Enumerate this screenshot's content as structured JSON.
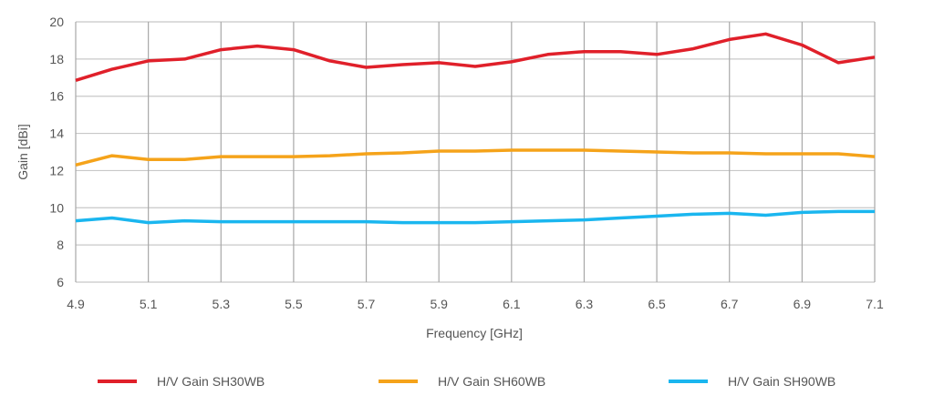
{
  "chart_data": {
    "type": "line",
    "xlabel": "Frequency [GHz]",
    "ylabel": "Gain [dBi]",
    "xlim": [
      4.9,
      7.1
    ],
    "ylim": [
      6,
      20
    ],
    "xticks": [
      "4.9",
      "5.1",
      "5.3",
      "5.5",
      "5.7",
      "5.9",
      "6.1",
      "6.3",
      "6.5",
      "6.7",
      "6.9",
      "7.1"
    ],
    "yticks": [
      "6",
      "8",
      "10",
      "12",
      "14",
      "16",
      "18",
      "20"
    ],
    "grid": true,
    "legend_position": "bottom",
    "x": [
      4.9,
      5.0,
      5.1,
      5.2,
      5.3,
      5.4,
      5.5,
      5.6,
      5.7,
      5.8,
      5.9,
      6.0,
      6.1,
      6.2,
      6.3,
      6.4,
      6.5,
      6.6,
      6.7,
      6.8,
      6.9,
      7.0,
      7.1
    ],
    "series": [
      {
        "name": "H/V Gain SH30WB",
        "color": "#e0202a",
        "values": [
          16.85,
          17.45,
          17.9,
          18.0,
          18.5,
          18.7,
          18.5,
          17.9,
          17.55,
          17.7,
          17.8,
          17.6,
          17.85,
          18.25,
          18.4,
          18.4,
          18.25,
          18.55,
          19.05,
          19.35,
          18.75,
          17.8,
          18.1
        ]
      },
      {
        "name": "H/V Gain SH60WB",
        "color": "#f5a31a",
        "values": [
          12.3,
          12.8,
          12.6,
          12.6,
          12.75,
          12.75,
          12.75,
          12.8,
          12.9,
          12.95,
          13.05,
          13.05,
          13.1,
          13.1,
          13.1,
          13.05,
          13.0,
          12.95,
          12.95,
          12.9,
          12.9,
          12.9,
          12.75
        ]
      },
      {
        "name": "H/V Gain SH90WB",
        "color": "#1ab6ef",
        "values": [
          9.3,
          9.45,
          9.2,
          9.3,
          9.25,
          9.25,
          9.25,
          9.25,
          9.25,
          9.2,
          9.2,
          9.2,
          9.25,
          9.3,
          9.35,
          9.45,
          9.55,
          9.65,
          9.7,
          9.6,
          9.75,
          9.8,
          9.8
        ]
      }
    ]
  }
}
